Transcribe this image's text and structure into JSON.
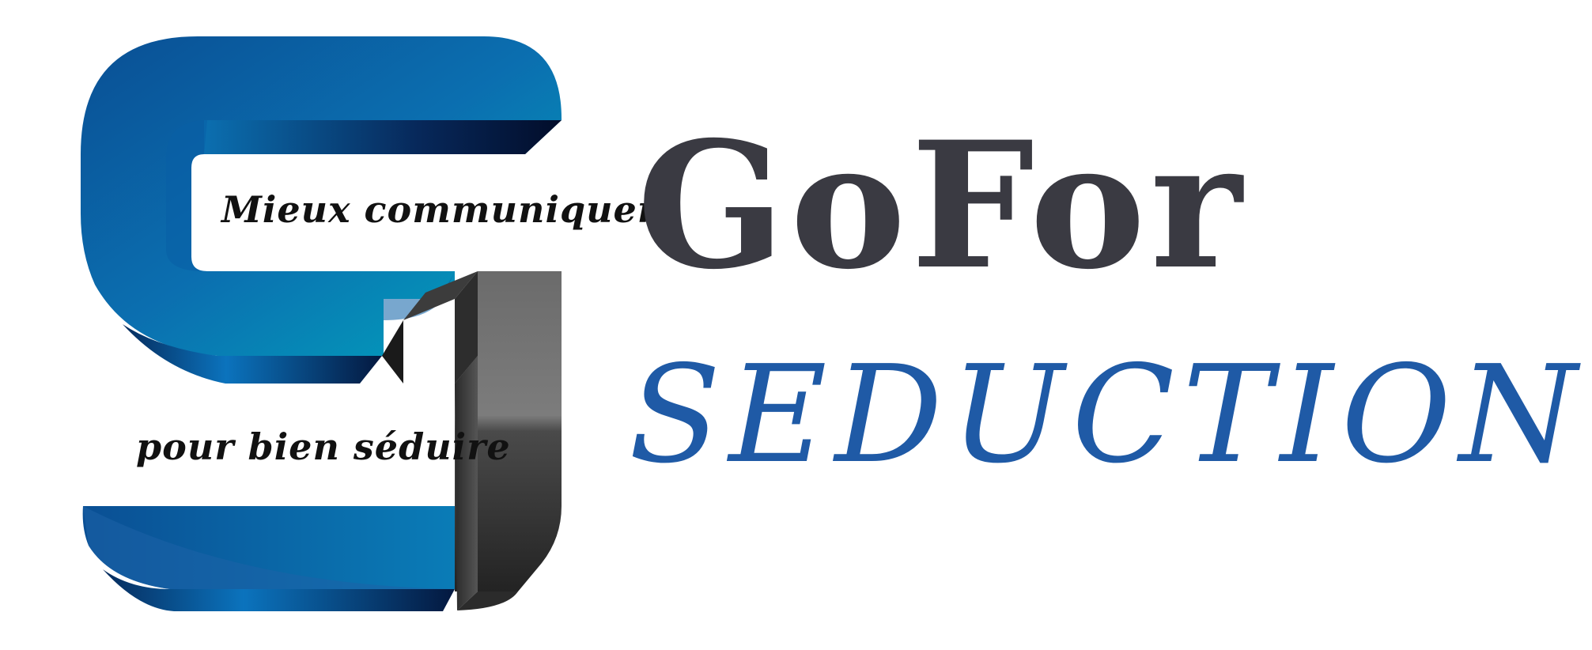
{
  "logo": {
    "tagline_top": "Mieux communiquer",
    "tagline_bottom": "pour bien séduire",
    "brand_name_line1": "GoFor",
    "brand_name_line2": "SEDUCTION"
  },
  "colors": {
    "brand_dark": "#3a3a42",
    "brand_blue": "#1f5aa6",
    "emblem_blue": "#0b63a8",
    "emblem_teal": "#00a3b8",
    "emblem_grey": "#4a4a4a"
  },
  "icons": [
    "s1-emblem-icon"
  ]
}
